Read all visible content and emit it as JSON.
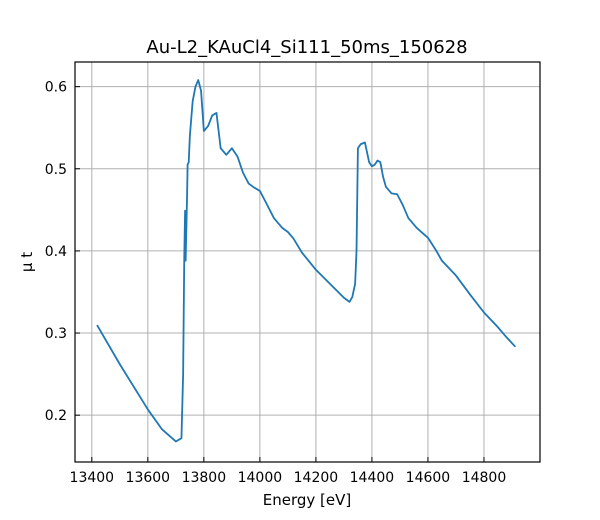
{
  "chart_data": {
    "type": "line",
    "title": "Au-L2_KAuCl4_Si111_50ms_150628",
    "xlabel": "Energy [eV]",
    "ylabel": "μ t",
    "xlim": [
      13340,
      15000
    ],
    "ylim": [
      0.143,
      0.63
    ],
    "grid": true,
    "legend": "none",
    "x_ticks": [
      13400,
      13600,
      13800,
      14000,
      14200,
      14400,
      14600,
      14800
    ],
    "y_ticks": [
      0.2,
      0.3,
      0.4,
      0.5,
      0.6
    ],
    "x_tick_labels": [
      "13400",
      "13600",
      "13800",
      "14000",
      "14200",
      "14400",
      "14600",
      "14800"
    ],
    "y_tick_labels": [
      "0.2",
      "0.3",
      "0.4",
      "0.5",
      "0.6"
    ],
    "series": [
      {
        "color": "#1f77b4",
        "x": [
          13420,
          13500,
          13600,
          13650,
          13700,
          13720,
          13726,
          13730,
          13733,
          13735,
          13737,
          13740,
          13742,
          13746,
          13750,
          13760,
          13770,
          13780,
          13790,
          13800,
          13815,
          13830,
          13845,
          13860,
          13880,
          13900,
          13920,
          13940,
          13960,
          13980,
          14000,
          14020,
          14050,
          14080,
          14100,
          14120,
          14150,
          14200,
          14250,
          14300,
          14320,
          14330,
          14340,
          14345,
          14350,
          14360,
          14375,
          14390,
          14400,
          14410,
          14420,
          14430,
          14440,
          14450,
          14470,
          14490,
          14510,
          14530,
          14560,
          14600,
          14630,
          14650,
          14700,
          14750,
          14800,
          14850,
          14880,
          14910
        ],
        "y": [
          0.309,
          0.262,
          0.207,
          0.183,
          0.168,
          0.172,
          0.25,
          0.39,
          0.449,
          0.388,
          0.42,
          0.465,
          0.505,
          0.508,
          0.54,
          0.582,
          0.6,
          0.608,
          0.595,
          0.546,
          0.552,
          0.565,
          0.568,
          0.525,
          0.517,
          0.525,
          0.515,
          0.495,
          0.482,
          0.477,
          0.473,
          0.46,
          0.44,
          0.428,
          0.423,
          0.415,
          0.398,
          0.377,
          0.36,
          0.343,
          0.338,
          0.344,
          0.36,
          0.4,
          0.525,
          0.53,
          0.532,
          0.508,
          0.503,
          0.505,
          0.51,
          0.508,
          0.49,
          0.478,
          0.47,
          0.469,
          0.456,
          0.44,
          0.428,
          0.416,
          0.4,
          0.388,
          0.37,
          0.347,
          0.325,
          0.307,
          0.295,
          0.284
        ]
      }
    ]
  }
}
